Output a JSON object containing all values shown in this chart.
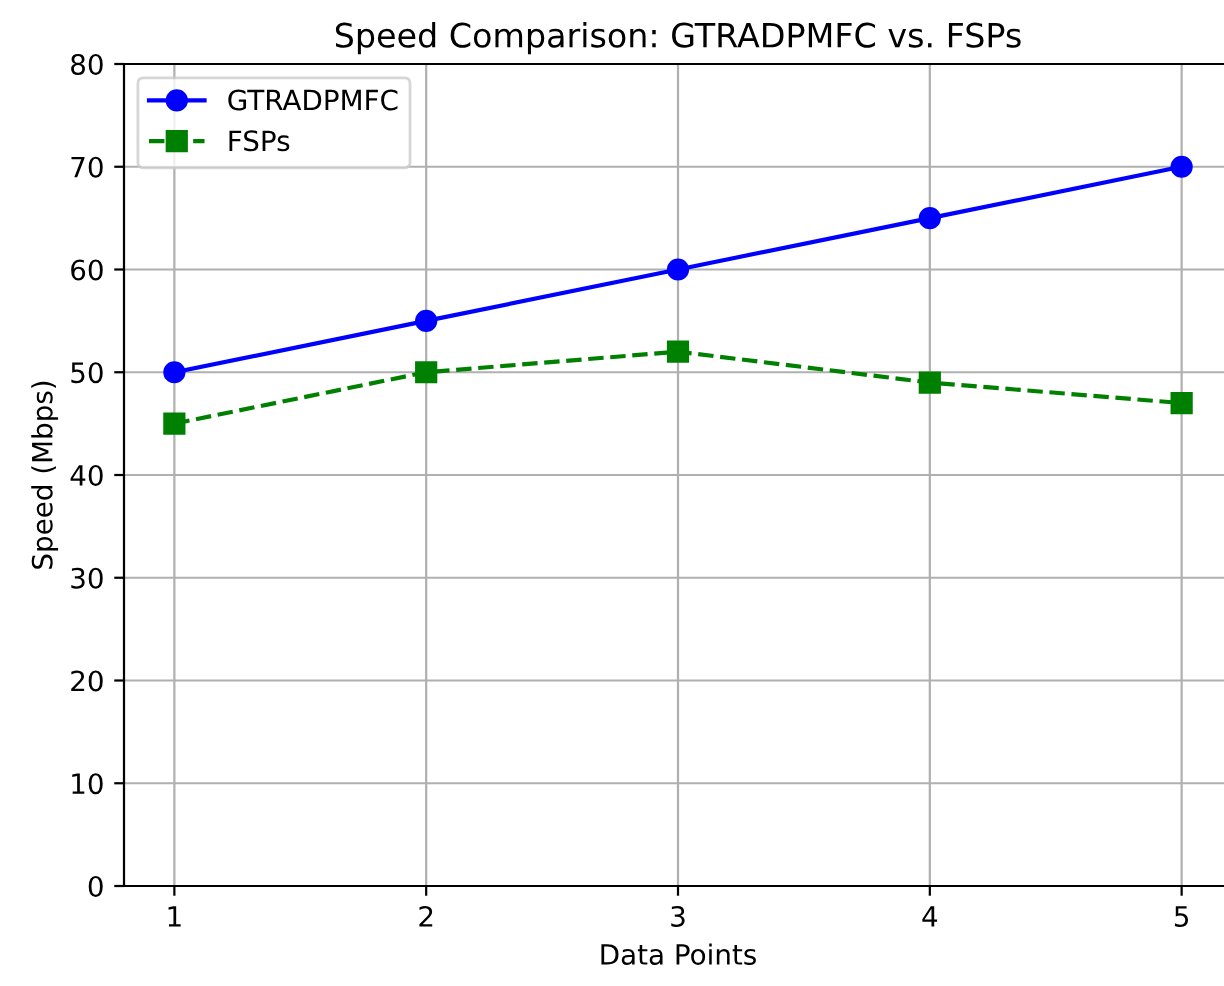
{
  "chart_data": {
    "type": "line",
    "title": "Speed Comparison: GTRADPMFC vs. FSPs",
    "xlabel": "Data Points",
    "ylabel": "Speed (Mbps)",
    "x": [
      1,
      2,
      3,
      4,
      5
    ],
    "series": [
      {
        "name": "GTRADPMFC",
        "color": "#0000ff",
        "values": [
          50,
          55,
          60,
          65,
          70
        ],
        "marker": "circle",
        "line_style": "solid"
      },
      {
        "name": "FSPs",
        "color": "#008000",
        "values": [
          45,
          50,
          52,
          49,
          47
        ],
        "marker": "square",
        "line_style": "dashed"
      }
    ],
    "xlim": [
      0.8,
      5.2
    ],
    "xticks": [
      1,
      2,
      3,
      4,
      5
    ],
    "ylim": [
      0,
      80
    ],
    "yticks": [
      0,
      10,
      20,
      30,
      40,
      50,
      60,
      70,
      80
    ],
    "grid": true,
    "legend": "top left"
  }
}
